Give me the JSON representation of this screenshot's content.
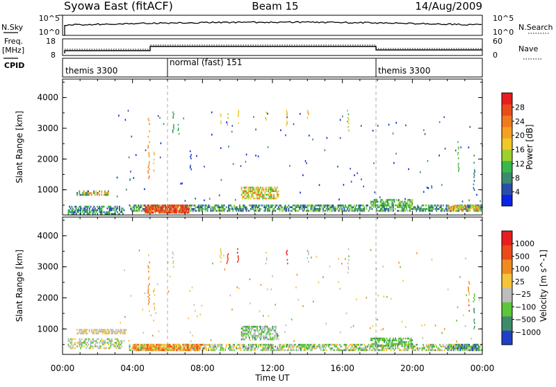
{
  "header": {
    "title": "Syowa East (fitACF)",
    "beam": "Beam 15",
    "date": "14/Aug/2009"
  },
  "strip_nsky": {
    "left_label": "N.Sky",
    "left_ticks": [
      "10^5",
      "10^0"
    ],
    "right_label": "N.Search",
    "right_ticks": [
      "10^5",
      "10^0"
    ]
  },
  "strip_freq": {
    "left_label_line1": "Freq.",
    "left_label_line2": "[MHz]",
    "left_ticks": [
      "18",
      "8"
    ],
    "right_label": "Nave",
    "right_ticks": [
      "60",
      "0"
    ]
  },
  "strip_cpid": {
    "label": "CPID",
    "segments": [
      "themis 3300",
      "normal (fast) 151",
      "themis 3300"
    ]
  },
  "chart_data": [
    {
      "type": "heatmap",
      "name": "power",
      "xlabel": "Time UT",
      "ylabel": "Slant Range [km]",
      "x_ticks": [
        "00:00",
        "04:00",
        "08:00",
        "12:00",
        "16:00",
        "20:00",
        "00:00"
      ],
      "x_range_hours": [
        0,
        24
      ],
      "y_ticks": [
        4000,
        3000,
        2000,
        1000
      ],
      "y_range": [
        180,
        4600
      ],
      "colorbar_label": "Power [dB]",
      "colorbar_ticks": [
        "28",
        "24",
        "20",
        "16",
        "12",
        "8",
        "4"
      ],
      "colors": [
        "#0a23e6",
        "#2a4fa8",
        "#3a8a6e",
        "#38b84a",
        "#9bd12a",
        "#f0c828",
        "#f5a023",
        "#f07a20",
        "#ea4b1b",
        "#e81e1e"
      ],
      "scatter_bands": [
        {
          "t": [
            0.3,
            3.5
          ],
          "r": [
            220,
            480
          ],
          "level": [
            0.1,
            0.4
          ],
          "density": 0.55
        },
        {
          "t": [
            0.8,
            2.6
          ],
          "r": [
            820,
            980
          ],
          "level": [
            0.1,
            0.8
          ],
          "density": 0.7
        },
        {
          "t": [
            3.8,
            24.0
          ],
          "r": [
            330,
            520
          ],
          "level": [
            0.1,
            0.5
          ],
          "density": 0.6
        },
        {
          "t": [
            4.7,
            7.2
          ],
          "r": [
            280,
            520
          ],
          "level": [
            0.7,
            1.0
          ],
          "density": 0.8
        },
        {
          "t": [
            10.2,
            12.3
          ],
          "r": [
            700,
            1100
          ],
          "level": [
            0.3,
            0.8
          ],
          "density": 0.6
        },
        {
          "t": [
            17.6,
            20.0
          ],
          "r": [
            450,
            700
          ],
          "level": [
            0.2,
            0.5
          ],
          "density": 0.6
        },
        {
          "t": [
            22.0,
            23.8
          ],
          "r": [
            330,
            500
          ],
          "level": [
            0.4,
            0.8
          ],
          "density": 0.6
        }
      ],
      "streaks": [
        {
          "t": 4.9,
          "r": [
            1400,
            3400
          ],
          "level": 0.7
        },
        {
          "t": 5.2,
          "r": [
            1600,
            2300
          ],
          "level": 0.6
        },
        {
          "t": 6.3,
          "r": [
            2900,
            3550
          ],
          "level": 0.3
        },
        {
          "t": 6.6,
          "r": [
            2700,
            3200
          ],
          "level": 0.3
        },
        {
          "t": 9.0,
          "r": [
            3150,
            3600
          ],
          "level": 0.5
        },
        {
          "t": 9.4,
          "r": [
            3100,
            3550
          ],
          "level": 0.5
        },
        {
          "t": 10.0,
          "r": [
            3150,
            3600
          ],
          "level": 0.6
        },
        {
          "t": 11.6,
          "r": [
            3100,
            3600
          ],
          "level": 0.5
        },
        {
          "t": 12.8,
          "r": [
            3100,
            3600
          ],
          "level": 0.6
        },
        {
          "t": 14.0,
          "r": [
            3150,
            3600
          ],
          "level": 0.55
        },
        {
          "t": 16.3,
          "r": [
            2800,
            3600
          ],
          "level": 0.45
        },
        {
          "t": 22.6,
          "r": [
            1600,
            2700
          ],
          "level": 0.4
        },
        {
          "t": 23.5,
          "r": [
            1000,
            2200
          ],
          "level": 0.2
        },
        {
          "t": 7.3,
          "r": [
            1600,
            2400
          ],
          "level": 0.1
        }
      ]
    },
    {
      "type": "heatmap",
      "name": "velocity",
      "xlabel": "Time UT",
      "ylabel": "Slant Range [km]",
      "x_ticks": [
        "00:00",
        "04:00",
        "08:00",
        "12:00",
        "16:00",
        "20:00",
        "00:00"
      ],
      "x_range_hours": [
        0,
        24
      ],
      "y_ticks": [
        4000,
        3000,
        2000,
        1000
      ],
      "y_range": [
        180,
        4600
      ],
      "colorbar_label": "Velocity [m s^-1]",
      "colorbar_ticks": [
        "1000",
        "500",
        "100",
        "25",
        "-25",
        "-100",
        "-500",
        "-1000"
      ],
      "colors": [
        "#1f3fc7",
        "#3f8a6a",
        "#5cc63a",
        "#bdbdbd",
        "#f5c43a",
        "#f08a22",
        "#ea4a1b",
        "#e81e1e"
      ],
      "scatter_bands": [
        {
          "t": [
            0.3,
            3.5
          ],
          "r": [
            380,
            700
          ],
          "level": [
            0.3,
            0.55
          ],
          "density": 0.5
        },
        {
          "t": [
            0.8,
            3.6
          ],
          "r": [
            830,
            1000
          ],
          "level": [
            0.4,
            0.6
          ],
          "density": 0.75
        },
        {
          "t": [
            3.8,
            24.0
          ],
          "r": [
            330,
            520
          ],
          "level": [
            0.2,
            0.6
          ],
          "density": 0.6
        },
        {
          "t": [
            4.0,
            8.0
          ],
          "r": [
            300,
            520
          ],
          "level": [
            0.55,
            0.8
          ],
          "density": 0.7
        },
        {
          "t": [
            10.2,
            12.3
          ],
          "r": [
            650,
            1100
          ],
          "level": [
            0.2,
            0.5
          ],
          "density": 0.55
        },
        {
          "t": [
            17.6,
            20.0
          ],
          "r": [
            450,
            720
          ],
          "level": [
            0.2,
            0.35
          ],
          "density": 0.6
        },
        {
          "t": [
            22.0,
            23.8
          ],
          "r": [
            330,
            520
          ],
          "level": [
            0.05,
            0.3
          ],
          "density": 0.6
        }
      ],
      "streaks": [
        {
          "t": 4.9,
          "r": [
            1400,
            3400
          ],
          "level": 0.65
        },
        {
          "t": 5.2,
          "r": [
            1600,
            2300
          ],
          "level": 0.6
        },
        {
          "t": 6.3,
          "r": [
            3000,
            3550
          ],
          "level": 0.45
        },
        {
          "t": 9.0,
          "r": [
            3150,
            3600
          ],
          "level": 0.55
        },
        {
          "t": 9.4,
          "r": [
            3100,
            3550
          ],
          "level": 0.85
        },
        {
          "t": 10.0,
          "r": [
            3150,
            3600
          ],
          "level": 0.9
        },
        {
          "t": 11.6,
          "r": [
            3100,
            3600
          ],
          "level": 0.5
        },
        {
          "t": 12.8,
          "r": [
            3100,
            3600
          ],
          "level": 0.9
        },
        {
          "t": 14.0,
          "r": [
            3150,
            3600
          ],
          "level": 0.45
        },
        {
          "t": 16.3,
          "r": [
            2800,
            3600
          ],
          "level": 0.4
        },
        {
          "t": 23.2,
          "r": [
            1600,
            2600
          ],
          "level": 0.7
        },
        {
          "t": 23.5,
          "r": [
            1000,
            2200
          ],
          "level": 0.25
        }
      ]
    }
  ]
}
